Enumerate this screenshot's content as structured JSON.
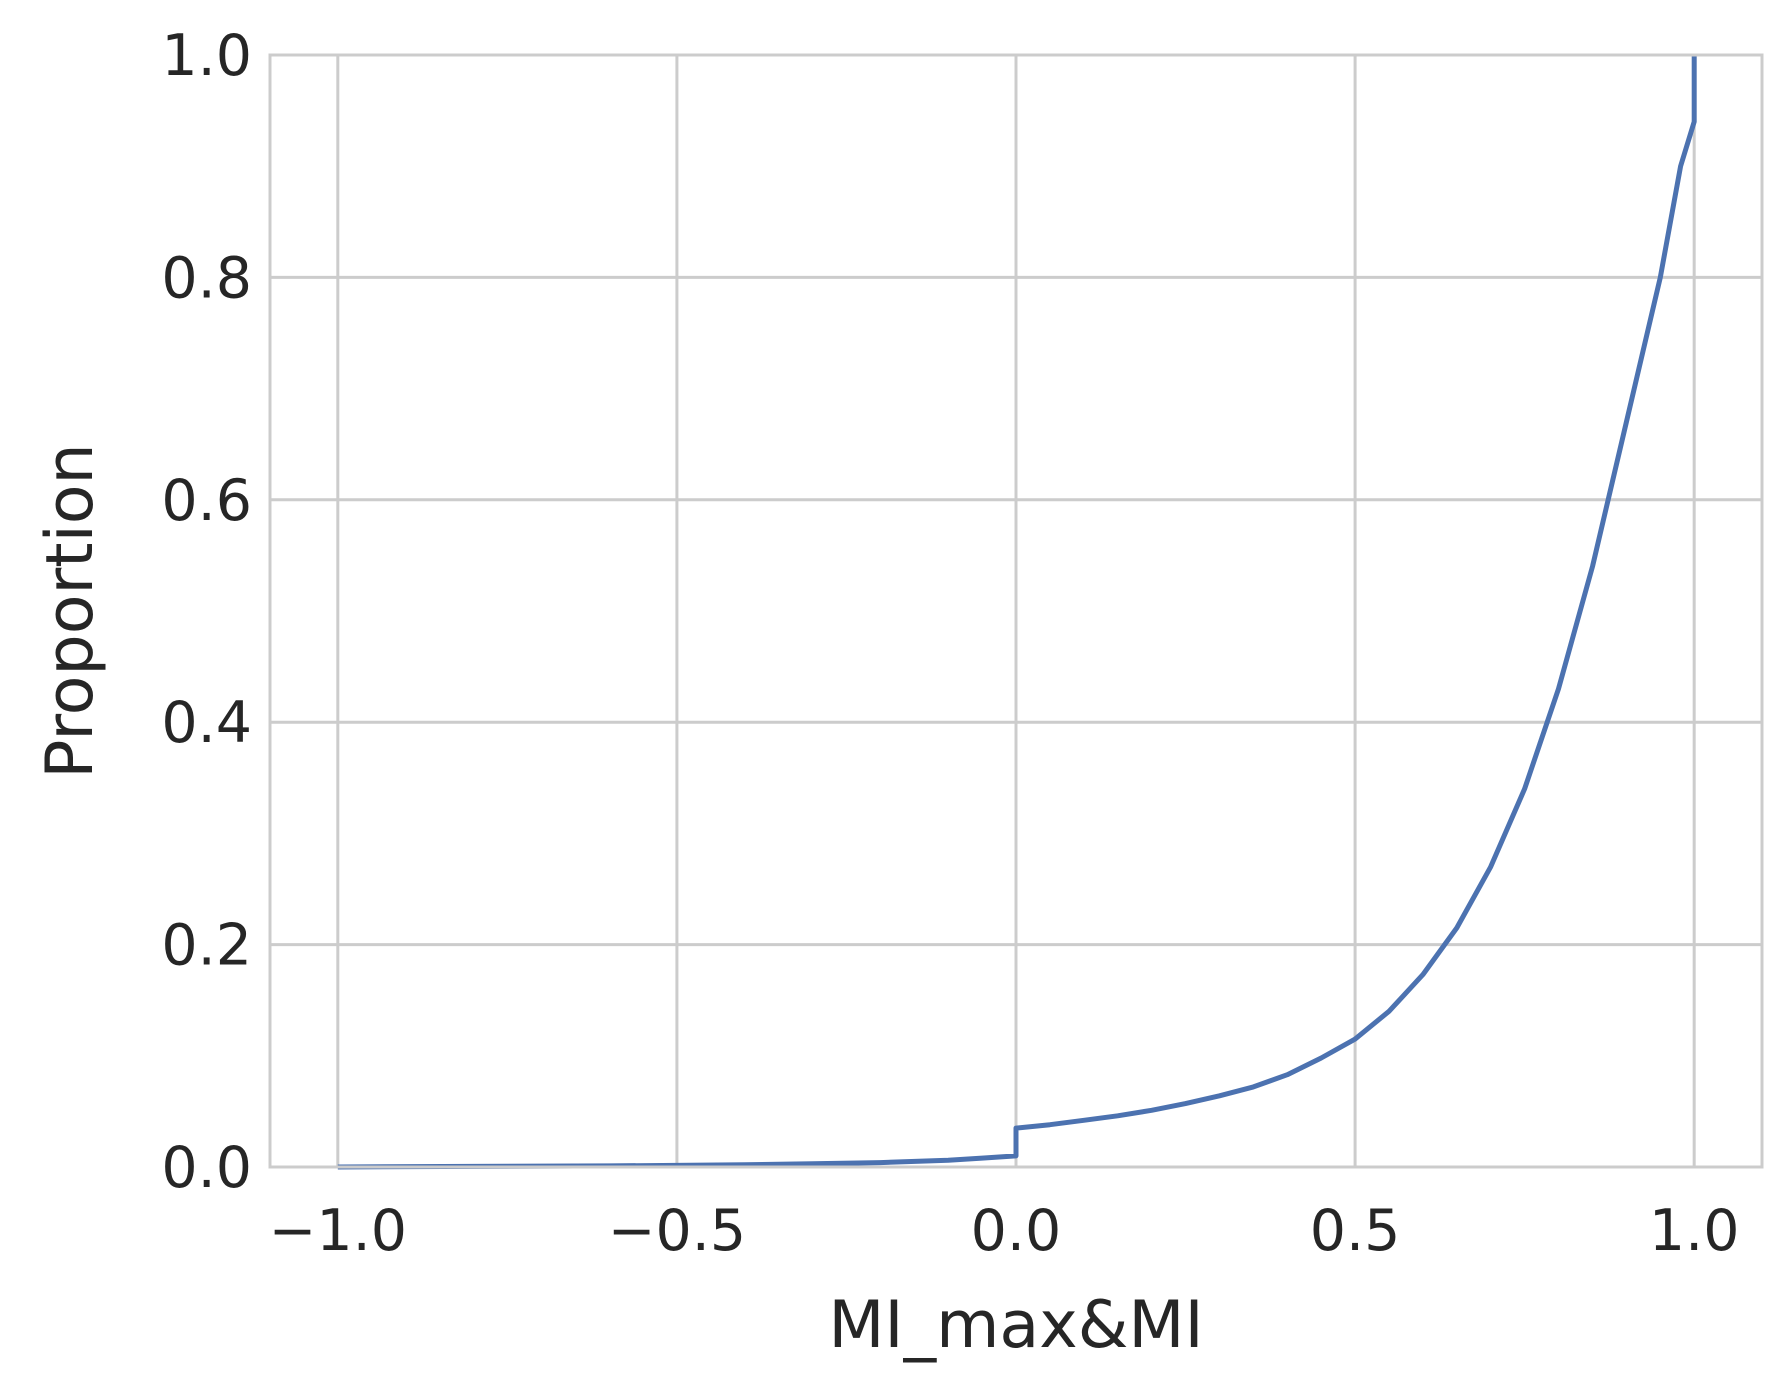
{
  "chart_data": {
    "type": "line",
    "title": "",
    "xlabel": "MI_max&MI",
    "ylabel": "Proportion",
    "xlim": [
      -1.1,
      1.1
    ],
    "ylim": [
      0.0,
      1.0
    ],
    "x_ticks": [
      {
        "value": -1.0,
        "label": "−1.0"
      },
      {
        "value": -0.5,
        "label": "−0.5"
      },
      {
        "value": 0.0,
        "label": "0.0"
      },
      {
        "value": 0.5,
        "label": "0.5"
      },
      {
        "value": 1.0,
        "label": "1.0"
      }
    ],
    "y_ticks": [
      {
        "value": 0.0,
        "label": "0.0"
      },
      {
        "value": 0.2,
        "label": "0.2"
      },
      {
        "value": 0.4,
        "label": "0.4"
      },
      {
        "value": 0.6,
        "label": "0.6"
      },
      {
        "value": 0.8,
        "label": "0.8"
      },
      {
        "value": 1.0,
        "label": "1.0"
      }
    ],
    "grid": true,
    "line_color": "#4c72b0",
    "grid_color": "#cccccc",
    "series": [
      {
        "x": [
          -1.0,
          -0.8,
          -0.6,
          -0.4,
          -0.3,
          -0.2,
          -0.1,
          -0.05,
          0.0,
          0.0,
          0.05,
          0.1,
          0.15,
          0.2,
          0.25,
          0.3,
          0.35,
          0.4,
          0.45,
          0.5,
          0.55,
          0.6,
          0.65,
          0.7,
          0.75,
          0.8,
          0.85,
          0.9,
          0.95,
          0.98,
          1.0,
          1.0
        ],
        "y": [
          0.0,
          0.0005,
          0.001,
          0.002,
          0.003,
          0.004,
          0.006,
          0.008,
          0.01,
          0.035,
          0.038,
          0.042,
          0.046,
          0.051,
          0.057,
          0.064,
          0.072,
          0.083,
          0.098,
          0.115,
          0.14,
          0.173,
          0.215,
          0.27,
          0.34,
          0.43,
          0.54,
          0.67,
          0.8,
          0.9,
          0.94,
          1.0
        ]
      }
    ]
  }
}
